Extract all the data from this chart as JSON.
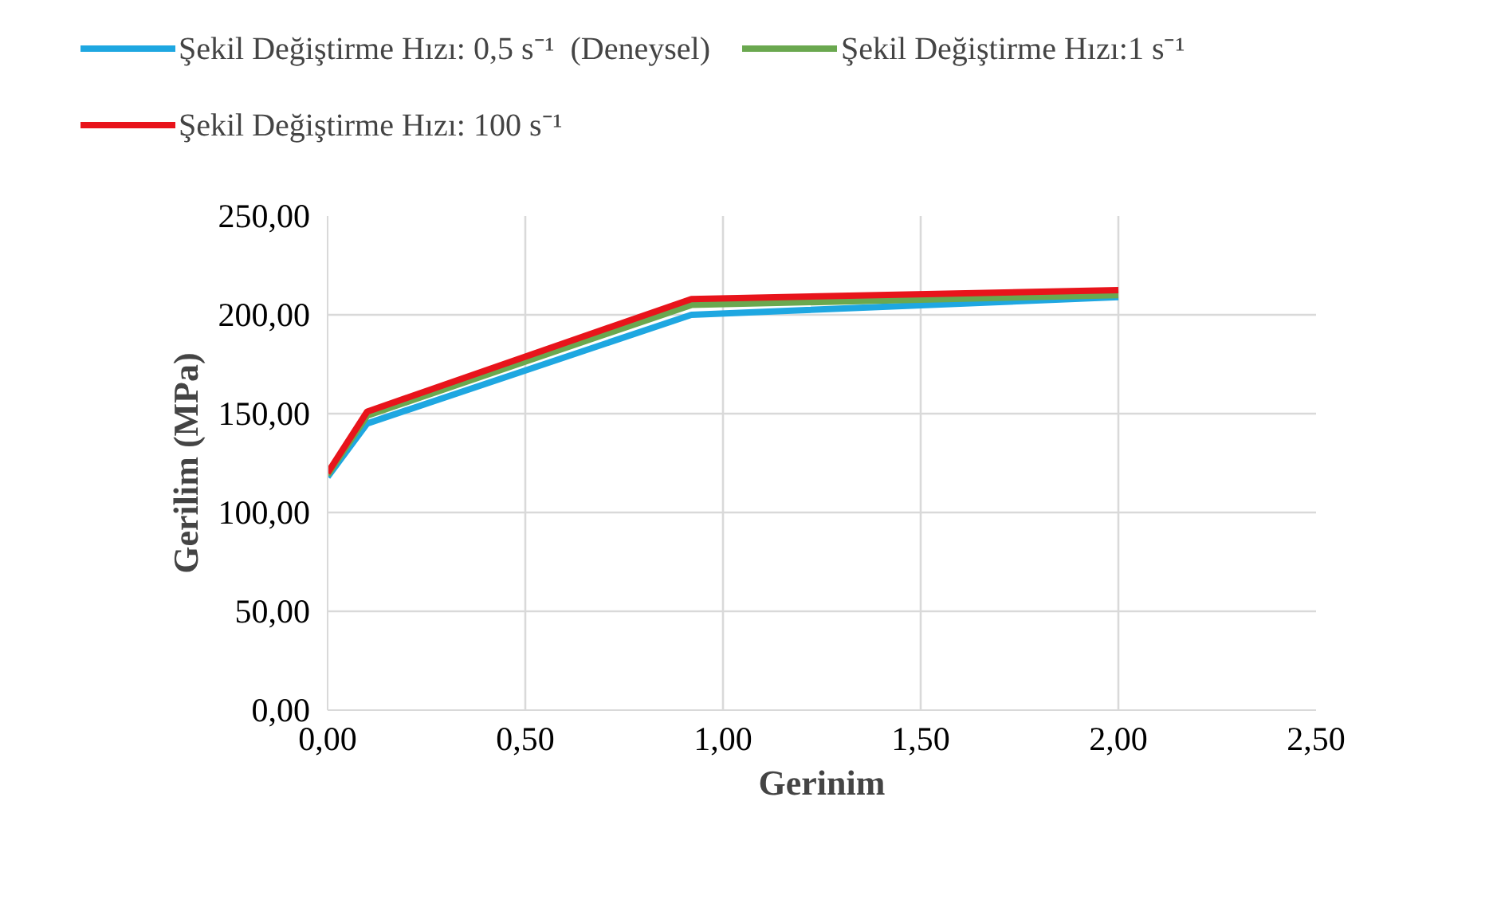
{
  "chart_data": {
    "type": "line",
    "xlabel": "Gerinim",
    "ylabel": "Gerilim (MPa)",
    "xlim": [
      0,
      2.5
    ],
    "xticks": [
      {
        "value": 0,
        "label": "0,00"
      },
      {
        "value": 0.5,
        "label": "0,50"
      },
      {
        "value": 1,
        "label": "1,00"
      },
      {
        "value": 1.5,
        "label": "1,50"
      },
      {
        "value": 2,
        "label": "2,00"
      },
      {
        "value": 2.5,
        "label": "2,50"
      }
    ],
    "ylim": [
      0,
      250
    ],
    "yticks": [
      {
        "value": 0,
        "label": "0,00"
      },
      {
        "value": 50,
        "label": "50,00"
      },
      {
        "value": 100,
        "label": "100,00"
      },
      {
        "value": 150,
        "label": "150,00"
      },
      {
        "value": 200,
        "label": "200,00"
      },
      {
        "value": 250,
        "label": "250,00"
      }
    ],
    "grid": true,
    "legend": "top",
    "line_style": "solid",
    "marker": "none",
    "x": [
      0,
      0.1,
      0.92,
      2
    ],
    "series": [
      {
        "name": "Şekil Değiştirme Hızı: 0,5 s⁻¹  (Deneysel)",
        "color": "#1ea7e1",
        "values": [
          118,
          145,
          200,
          209
        ]
      },
      {
        "name": "Şekil Değiştirme Hızı:1 s⁻¹",
        "color": "#6aa84f",
        "values": [
          119,
          149,
          205,
          210
        ]
      },
      {
        "name": "Şekil Değiştirme Hızı: 100 s⁻¹",
        "color": "#e8141b",
        "values": [
          120,
          151,
          208,
          212.5
        ]
      }
    ]
  }
}
